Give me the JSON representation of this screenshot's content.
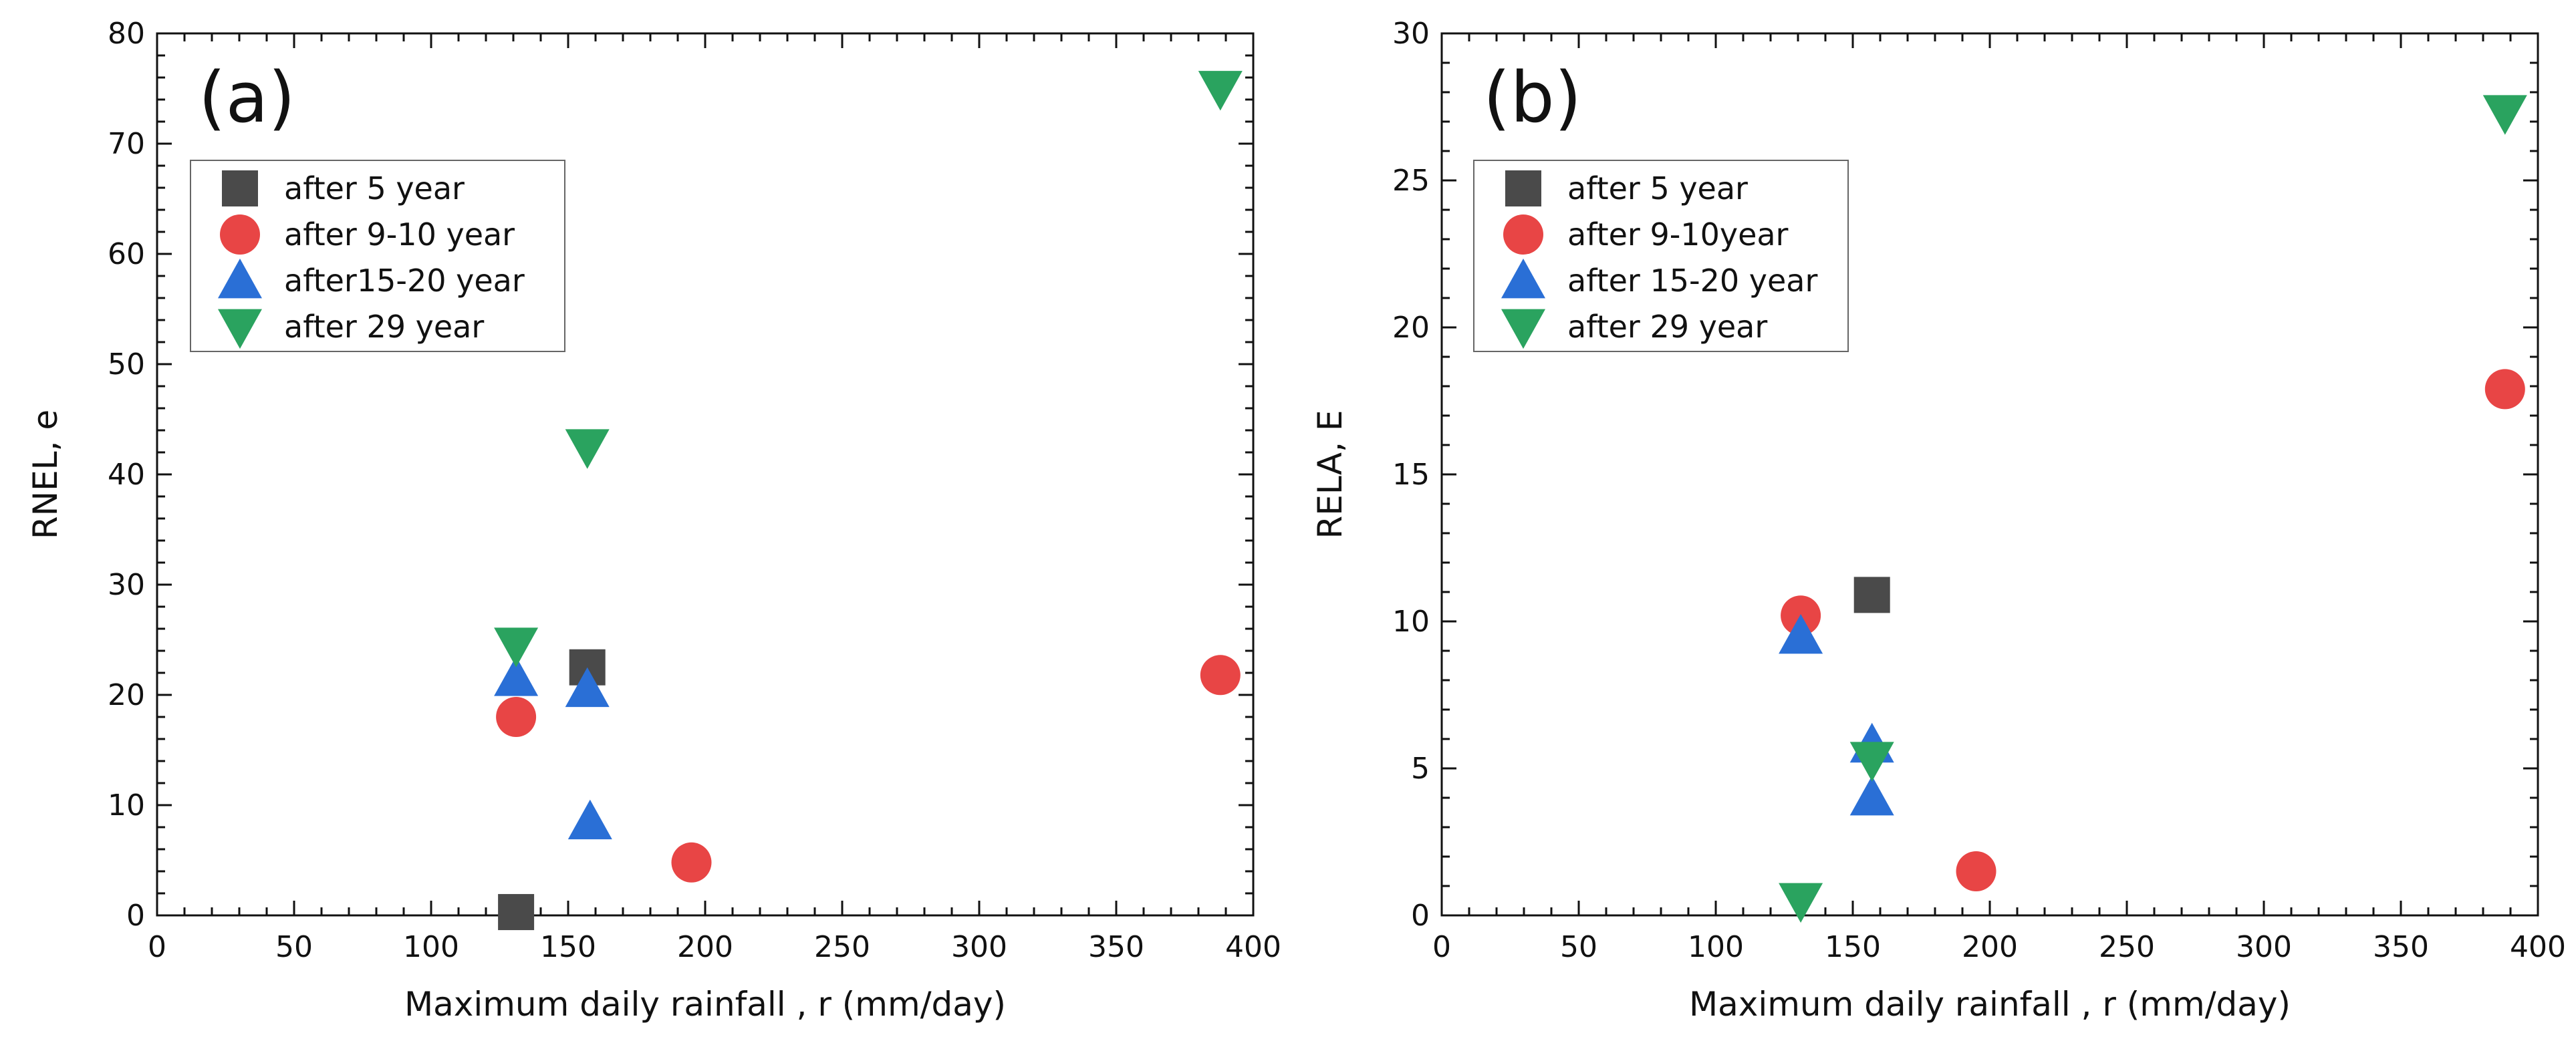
{
  "chart_data": [
    {
      "type": "scatter",
      "panel_label": "(a)",
      "xlabel": "Maximum daily rainfall , r (mm/day)",
      "ylabel": "RNEL, e",
      "xlim": [
        0,
        400
      ],
      "ylim": [
        0,
        80
      ],
      "xticks": [
        0,
        50,
        100,
        150,
        200,
        250,
        300,
        350,
        400
      ],
      "yticks": [
        0,
        10,
        20,
        30,
        40,
        50,
        60,
        70,
        80
      ],
      "grid": false,
      "legend_position": "top-left",
      "series": [
        {
          "name": "after 5 year",
          "marker": "square",
          "color": "#4a4a4a",
          "points": [
            [
              131,
              0.3
            ],
            [
              157,
              22.5
            ]
          ]
        },
        {
          "name": "after 9-10 year",
          "marker": "circle",
          "color": "#e84545",
          "points": [
            [
              131,
              18
            ],
            [
              195,
              4.8
            ],
            [
              388,
              21.8
            ]
          ]
        },
        {
          "name": "after15-20 year",
          "marker": "triangle-up",
          "color": "#2a6fd6",
          "points": [
            [
              131,
              21.5
            ],
            [
              157,
              20.5
            ],
            [
              158,
              8.5
            ]
          ]
        },
        {
          "name": "after 29 year",
          "marker": "triangle-down",
          "color": "#2aa35f",
          "points": [
            [
              131,
              24.5
            ],
            [
              157,
              42.5
            ],
            [
              388,
              75
            ]
          ]
        }
      ]
    },
    {
      "type": "scatter",
      "panel_label": "(b)",
      "xlabel": "Maximum daily rainfall , r (mm/day)",
      "ylabel": "RELA, E",
      "xlim": [
        0,
        400
      ],
      "ylim": [
        0,
        30
      ],
      "xticks": [
        0,
        50,
        100,
        150,
        200,
        250,
        300,
        350,
        400
      ],
      "yticks": [
        0,
        5,
        10,
        15,
        20,
        25,
        30
      ],
      "grid": false,
      "legend_position": "top-left",
      "series": [
        {
          "name": "after 5 year",
          "marker": "square",
          "color": "#4a4a4a",
          "points": [
            [
              157,
              10.9
            ]
          ]
        },
        {
          "name": "after 9-10year",
          "marker": "circle",
          "color": "#e84545",
          "points": [
            [
              131,
              10.2
            ],
            [
              195,
              1.5
            ],
            [
              388,
              17.9
            ]
          ]
        },
        {
          "name": "after 15-20 year",
          "marker": "triangle-up",
          "color": "#2a6fd6",
          "points": [
            [
              131,
              9.5
            ],
            [
              157,
              5.8
            ],
            [
              157,
              4
            ]
          ]
        },
        {
          "name": "after 29 year",
          "marker": "triangle-down",
          "color": "#2aa35f",
          "points": [
            [
              131,
              0.5
            ],
            [
              157,
              5.3
            ],
            [
              388,
              27.3
            ]
          ]
        }
      ]
    }
  ]
}
